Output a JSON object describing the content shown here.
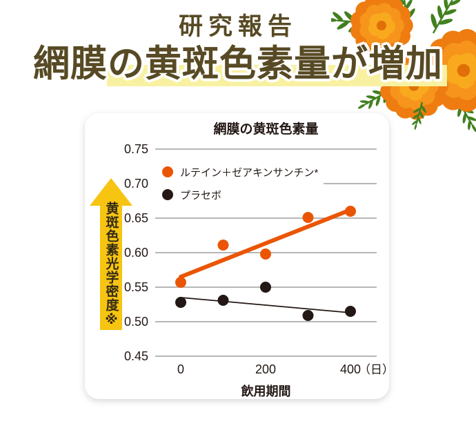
{
  "page": {
    "background": "#ffffff"
  },
  "header": {
    "kicker": "研究報告",
    "title": "網膜の黄斑色素量が増加",
    "text_color": "#574a24",
    "highlight_color": "#f8f1a2"
  },
  "yaxis_arrow": {
    "label": "黄斑色素光学密度※",
    "arrow_color": "#f6c411",
    "text_color": "#332a15"
  },
  "chart_data": {
    "type": "scatter",
    "title": "網膜の黄斑色素量",
    "xlabel": "飲用期間",
    "x_unit_label": "（日）",
    "ylabel": "黄斑色素光学密度※",
    "xlim": [
      0,
      400
    ],
    "ylim": [
      0.45,
      0.75
    ],
    "grid": true,
    "legend_position": "inside-top-left",
    "gridline_color": "#8a8a8a",
    "tick_color": "#231815",
    "x_ticks": [
      {
        "value": 0,
        "label": "0"
      },
      {
        "value": 200,
        "label": "200"
      },
      {
        "value": 400,
        "label": "400"
      }
    ],
    "y_ticks": [
      {
        "value": 0.75,
        "label": "0.75"
      },
      {
        "value": 0.7,
        "label": "0.70"
      },
      {
        "value": 0.65,
        "label": "0.65"
      },
      {
        "value": 0.6,
        "label": "0.60"
      },
      {
        "value": 0.55,
        "label": "0.55"
      },
      {
        "value": 0.5,
        "label": "0.50"
      },
      {
        "value": 0.45,
        "label": "0.45"
      }
    ],
    "x": [
      0,
      100,
      200,
      300,
      400
    ],
    "series": [
      {
        "name": "ルテイン＋ゼアキンサンチン*",
        "color": "#ea5504",
        "values": [
          0.557,
          0.611,
          0.598,
          0.651,
          0.66
        ],
        "trend_line": {
          "x": [
            0,
            400
          ],
          "y": [
            0.565,
            0.662
          ]
        }
      },
      {
        "name": "プラセボ",
        "color": "#231815",
        "values": [
          0.528,
          0.531,
          0.55,
          0.509,
          0.515
        ],
        "trend_line": {
          "x": [
            0,
            400
          ],
          "y": [
            0.535,
            0.513
          ]
        }
      }
    ]
  },
  "decor": {
    "flower_core": "#e06f08",
    "flower_rings": [
      "#ee7c10",
      "#f6941c",
      "#f9a91e"
    ],
    "leaf_green": "#41801f"
  }
}
